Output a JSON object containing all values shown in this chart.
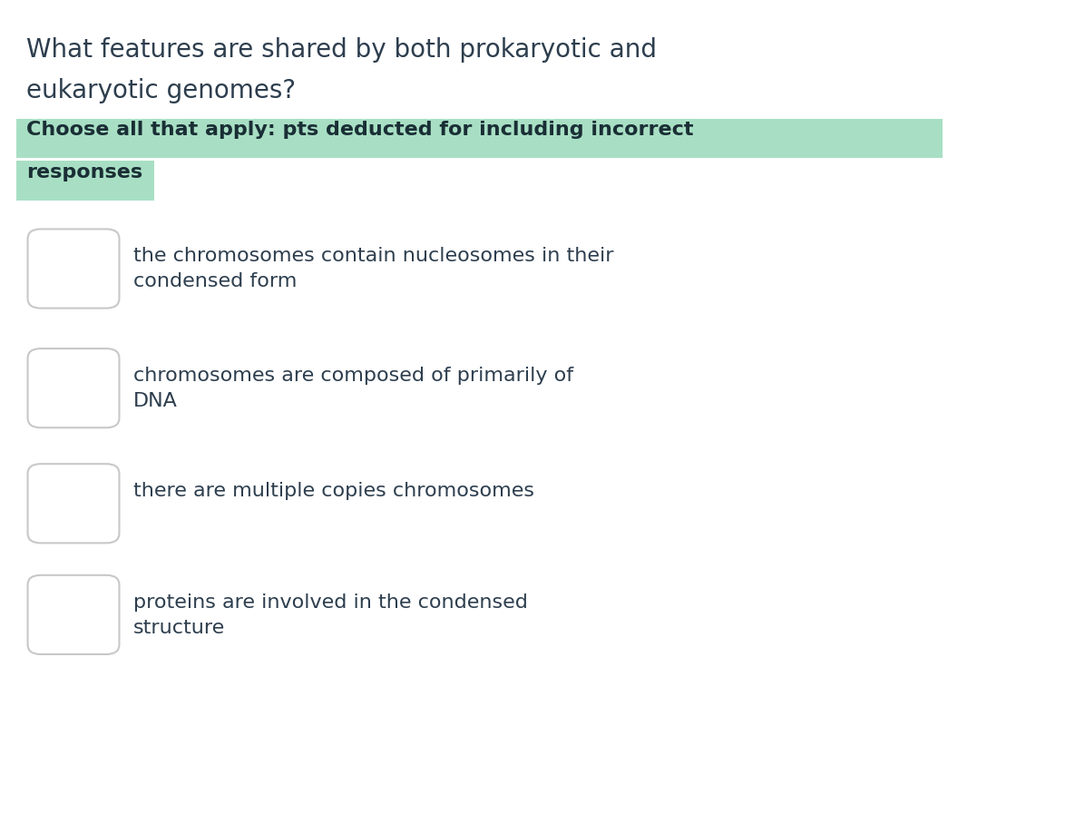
{
  "background_color": "#ffffff",
  "title_line1": "What features are shared by both prokaryotic and",
  "title_line2": "eukaryotic genomes?",
  "title_color": "#2d3e4e",
  "title_fontsize": 20,
  "highlight_text_line1": "Choose all that apply: pts deducted for including incorrect",
  "highlight_text_line2": "responses",
  "highlight_bg_color": "#a8dfc4",
  "highlight_text_color": "#1a2e35",
  "highlight_fontsize": 16,
  "options": [
    "the chromosomes contain nucleosomes in their\ncondensed form",
    "chromosomes are composed of primarily of\nDNA",
    "there are multiple copies chromosomes",
    "proteins are involved in the condensed\nstructure"
  ],
  "option_fontsize": 16,
  "option_color": "#2d3e4e",
  "checkbox_border_color": "#c8c8c8",
  "checkbox_fill_color": "#ffffff"
}
